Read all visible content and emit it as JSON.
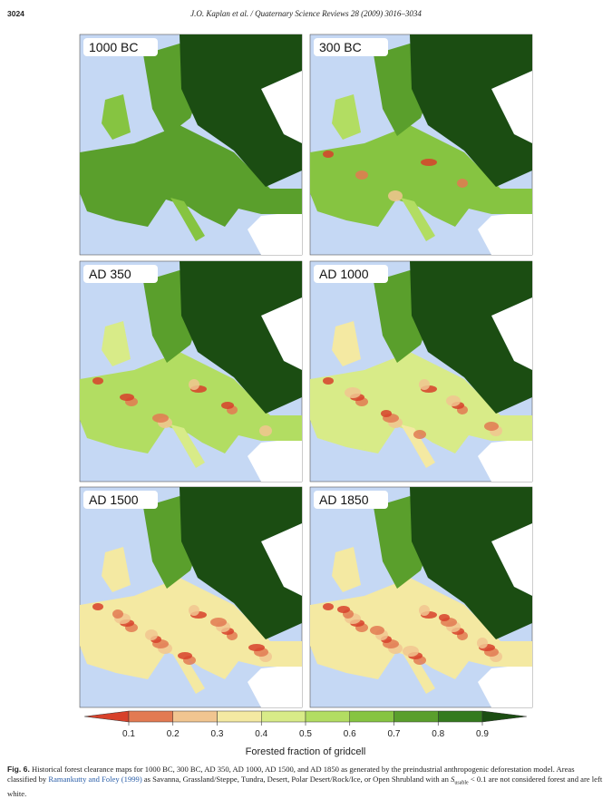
{
  "header": {
    "page": "3024",
    "running_title": "J.O. Kaplan et al. / Quaternary Science Reviews 28 (2009) 3016–3034"
  },
  "panels": [
    {
      "label": "1000 BC"
    },
    {
      "label": "300 BC"
    },
    {
      "label": "AD 350"
    },
    {
      "label": "AD 1000"
    },
    {
      "label": "AD 1500"
    },
    {
      "label": "AD 1850"
    }
  ],
  "colorbar": {
    "label": "Forested fraction of gridcell",
    "lim": [
      0,
      1
    ],
    "ticks": [
      0.1,
      0.2,
      0.3,
      0.4,
      0.5,
      0.6,
      0.7,
      0.8,
      0.9
    ],
    "colors": [
      "#d7412b",
      "#e27a52",
      "#f1c590",
      "#f4e9a2",
      "#d8eb88",
      "#b2dd62",
      "#86c441",
      "#5a9f2c",
      "#347a1e",
      "#1b4d12"
    ]
  },
  "caption": {
    "label": "Fig. 6.",
    "text1": " Historical forest clearance maps for 1000 BC, 300 BC, AD 350, AD 1000, AD 1500, and AD 1850 as generated by the preindustrial anthropogenic deforestation model. Areas classified by ",
    "link": "Ramankutty and Foley (1999)",
    "text2": " as Savanna, Grassland/Steppe, Tundra, Desert, Polar Desert/Rock/Ice, or Open Shrubland with an ",
    "symbol": "S",
    "subscript": "usable",
    "text3": " < 0.1 are not considered forest and are left white."
  }
}
